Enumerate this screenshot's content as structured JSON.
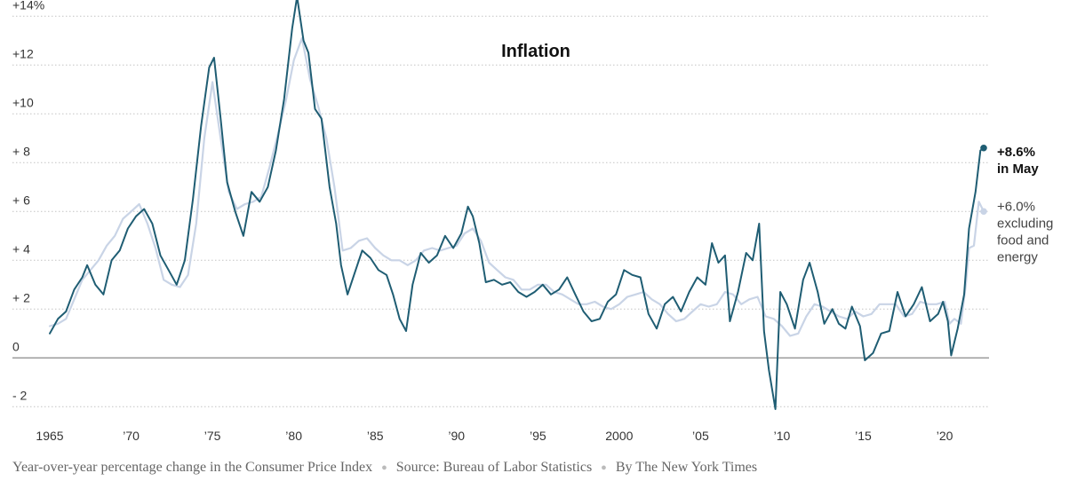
{
  "chart_data": {
    "type": "line",
    "title": "Inflation",
    "x_range": [
      1965,
      2022.4
    ],
    "y_range": [
      -2.5,
      14.3
    ],
    "y_ticks": [
      {
        "value": 14,
        "label": "+14%"
      },
      {
        "value": 12,
        "label": "+12"
      },
      {
        "value": 10,
        "label": "+10"
      },
      {
        "value": 8,
        "label": "+ 8"
      },
      {
        "value": 6,
        "label": "+ 6"
      },
      {
        "value": 4,
        "label": "+ 4"
      },
      {
        "value": 2,
        "label": "+ 2"
      },
      {
        "value": 0,
        "label": "0"
      },
      {
        "value": -2,
        "label": "- 2"
      }
    ],
    "x_ticks": [
      {
        "value": 1965,
        "label": "1965"
      },
      {
        "value": 1970,
        "label": "’70"
      },
      {
        "value": 1975,
        "label": "’75"
      },
      {
        "value": 1980,
        "label": "’80"
      },
      {
        "value": 1985,
        "label": "’85"
      },
      {
        "value": 1990,
        "label": "’90"
      },
      {
        "value": 1995,
        "label": "’95"
      },
      {
        "value": 2000,
        "label": "2000"
      },
      {
        "value": 2005,
        "label": "’05"
      },
      {
        "value": 2010,
        "label": "’10"
      },
      {
        "value": 2015,
        "label": "’15"
      },
      {
        "value": 2020,
        "label": "’20"
      }
    ],
    "series": [
      {
        "name": "Consumer Price Index",
        "color": "#1f5d73",
        "annotation": [
          "+8.6%",
          "in May"
        ],
        "points": [
          [
            1965.0,
            1.0
          ],
          [
            1965.5,
            1.6
          ],
          [
            1966.0,
            1.9
          ],
          [
            1966.5,
            2.8
          ],
          [
            1967.0,
            3.3
          ],
          [
            1967.3,
            3.8
          ],
          [
            1967.8,
            3.0
          ],
          [
            1968.3,
            2.6
          ],
          [
            1968.8,
            4.0
          ],
          [
            1969.3,
            4.4
          ],
          [
            1969.8,
            5.3
          ],
          [
            1970.3,
            5.8
          ],
          [
            1970.8,
            6.1
          ],
          [
            1971.3,
            5.5
          ],
          [
            1971.8,
            4.2
          ],
          [
            1972.3,
            3.6
          ],
          [
            1972.8,
            3.0
          ],
          [
            1973.3,
            4.0
          ],
          [
            1973.8,
            6.5
          ],
          [
            1974.3,
            9.5
          ],
          [
            1974.8,
            11.9
          ],
          [
            1975.1,
            12.3
          ],
          [
            1975.5,
            9.8
          ],
          [
            1975.9,
            7.2
          ],
          [
            1976.4,
            6.0
          ],
          [
            1976.9,
            5.0
          ],
          [
            1977.4,
            6.8
          ],
          [
            1977.9,
            6.4
          ],
          [
            1978.4,
            7.0
          ],
          [
            1978.9,
            8.5
          ],
          [
            1979.4,
            10.6
          ],
          [
            1979.9,
            13.5
          ],
          [
            1980.2,
            14.8
          ],
          [
            1980.6,
            13.0
          ],
          [
            1980.9,
            12.5
          ],
          [
            1981.3,
            10.2
          ],
          [
            1981.7,
            9.8
          ],
          [
            1982.2,
            7.0
          ],
          [
            1982.6,
            5.5
          ],
          [
            1982.9,
            3.8
          ],
          [
            1983.3,
            2.6
          ],
          [
            1983.7,
            3.4
          ],
          [
            1984.2,
            4.4
          ],
          [
            1984.7,
            4.1
          ],
          [
            1985.2,
            3.6
          ],
          [
            1985.7,
            3.4
          ],
          [
            1986.1,
            2.6
          ],
          [
            1986.5,
            1.6
          ],
          [
            1986.9,
            1.1
          ],
          [
            1987.3,
            3.0
          ],
          [
            1987.8,
            4.3
          ],
          [
            1988.3,
            3.9
          ],
          [
            1988.8,
            4.2
          ],
          [
            1989.3,
            5.0
          ],
          [
            1989.8,
            4.5
          ],
          [
            1990.3,
            5.1
          ],
          [
            1990.7,
            6.2
          ],
          [
            1991.0,
            5.8
          ],
          [
            1991.4,
            4.7
          ],
          [
            1991.8,
            3.1
          ],
          [
            1992.3,
            3.2
          ],
          [
            1992.8,
            3.0
          ],
          [
            1993.3,
            3.1
          ],
          [
            1993.8,
            2.7
          ],
          [
            1994.3,
            2.5
          ],
          [
            1994.8,
            2.7
          ],
          [
            1995.3,
            3.0
          ],
          [
            1995.8,
            2.6
          ],
          [
            1996.3,
            2.8
          ],
          [
            1996.8,
            3.3
          ],
          [
            1997.3,
            2.6
          ],
          [
            1997.8,
            1.9
          ],
          [
            1998.3,
            1.5
          ],
          [
            1998.8,
            1.6
          ],
          [
            1999.3,
            2.3
          ],
          [
            1999.8,
            2.6
          ],
          [
            2000.3,
            3.6
          ],
          [
            2000.8,
            3.4
          ],
          [
            2001.3,
            3.3
          ],
          [
            2001.8,
            1.8
          ],
          [
            2002.3,
            1.2
          ],
          [
            2002.8,
            2.2
          ],
          [
            2003.3,
            2.5
          ],
          [
            2003.8,
            1.9
          ],
          [
            2004.3,
            2.7
          ],
          [
            2004.8,
            3.3
          ],
          [
            2005.3,
            3.0
          ],
          [
            2005.7,
            4.7
          ],
          [
            2006.1,
            3.9
          ],
          [
            2006.5,
            4.2
          ],
          [
            2006.8,
            1.5
          ],
          [
            2007.3,
            2.7
          ],
          [
            2007.8,
            4.3
          ],
          [
            2008.2,
            4.0
          ],
          [
            2008.6,
            5.5
          ],
          [
            2008.9,
            1.1
          ],
          [
            2009.2,
            -0.5
          ],
          [
            2009.6,
            -2.1
          ],
          [
            2009.9,
            2.7
          ],
          [
            2010.3,
            2.2
          ],
          [
            2010.8,
            1.2
          ],
          [
            2011.3,
            3.2
          ],
          [
            2011.7,
            3.9
          ],
          [
            2012.2,
            2.7
          ],
          [
            2012.6,
            1.4
          ],
          [
            2013.1,
            2.0
          ],
          [
            2013.5,
            1.4
          ],
          [
            2013.9,
            1.2
          ],
          [
            2014.3,
            2.1
          ],
          [
            2014.8,
            1.3
          ],
          [
            2015.1,
            -0.1
          ],
          [
            2015.6,
            0.2
          ],
          [
            2016.1,
            1.0
          ],
          [
            2016.6,
            1.1
          ],
          [
            2017.1,
            2.7
          ],
          [
            2017.6,
            1.7
          ],
          [
            2018.1,
            2.2
          ],
          [
            2018.6,
            2.9
          ],
          [
            2019.1,
            1.5
          ],
          [
            2019.6,
            1.8
          ],
          [
            2019.9,
            2.3
          ],
          [
            2020.2,
            1.5
          ],
          [
            2020.4,
            0.1
          ],
          [
            2020.8,
            1.2
          ],
          [
            2021.2,
            2.6
          ],
          [
            2021.5,
            5.3
          ],
          [
            2021.9,
            6.8
          ],
          [
            2022.2,
            8.5
          ],
          [
            2022.4,
            8.6
          ]
        ]
      },
      {
        "name": "excluding food and energy",
        "color": "#c9d4e6",
        "annotation": [
          "+6.0%",
          "excluding",
          "food and",
          "energy"
        ],
        "points": [
          [
            1965.0,
            1.3
          ],
          [
            1965.5,
            1.4
          ],
          [
            1966.0,
            1.6
          ],
          [
            1966.5,
            2.4
          ],
          [
            1967.0,
            3.2
          ],
          [
            1967.5,
            3.6
          ],
          [
            1968.0,
            4.0
          ],
          [
            1968.5,
            4.6
          ],
          [
            1969.0,
            5.0
          ],
          [
            1969.5,
            5.7
          ],
          [
            1970.0,
            6.0
          ],
          [
            1970.5,
            6.3
          ],
          [
            1971.0,
            5.5
          ],
          [
            1971.5,
            4.5
          ],
          [
            1972.0,
            3.2
          ],
          [
            1972.5,
            3.0
          ],
          [
            1973.0,
            2.9
          ],
          [
            1973.5,
            3.4
          ],
          [
            1974.0,
            5.5
          ],
          [
            1974.5,
            9.0
          ],
          [
            1975.0,
            11.3
          ],
          [
            1975.5,
            9.0
          ],
          [
            1976.0,
            6.8
          ],
          [
            1976.5,
            6.1
          ],
          [
            1977.0,
            6.3
          ],
          [
            1977.5,
            6.4
          ],
          [
            1978.0,
            6.6
          ],
          [
            1978.5,
            7.8
          ],
          [
            1979.0,
            9.1
          ],
          [
            1979.5,
            10.5
          ],
          [
            1980.0,
            12.2
          ],
          [
            1980.5,
            13.1
          ],
          [
            1981.0,
            11.4
          ],
          [
            1981.5,
            10.3
          ],
          [
            1982.0,
            9.0
          ],
          [
            1982.5,
            7.0
          ],
          [
            1983.0,
            4.4
          ],
          [
            1983.5,
            4.5
          ],
          [
            1984.0,
            4.8
          ],
          [
            1984.5,
            4.9
          ],
          [
            1985.0,
            4.5
          ],
          [
            1985.5,
            4.2
          ],
          [
            1986.0,
            4.0
          ],
          [
            1986.5,
            4.0
          ],
          [
            1987.0,
            3.8
          ],
          [
            1987.5,
            4.0
          ],
          [
            1988.0,
            4.4
          ],
          [
            1988.5,
            4.5
          ],
          [
            1989.0,
            4.4
          ],
          [
            1989.5,
            4.5
          ],
          [
            1990.0,
            4.6
          ],
          [
            1990.5,
            5.1
          ],
          [
            1991.0,
            5.3
          ],
          [
            1991.5,
            4.8
          ],
          [
            1992.0,
            3.9
          ],
          [
            1992.5,
            3.6
          ],
          [
            1993.0,
            3.3
          ],
          [
            1993.5,
            3.2
          ],
          [
            1994.0,
            2.8
          ],
          [
            1994.5,
            2.8
          ],
          [
            1995.0,
            3.0
          ],
          [
            1995.5,
            3.0
          ],
          [
            1996.0,
            2.7
          ],
          [
            1996.5,
            2.6
          ],
          [
            1997.0,
            2.4
          ],
          [
            1997.5,
            2.2
          ],
          [
            1998.0,
            2.2
          ],
          [
            1998.5,
            2.3
          ],
          [
            1999.0,
            2.1
          ],
          [
            1999.5,
            2.0
          ],
          [
            2000.0,
            2.2
          ],
          [
            2000.5,
            2.5
          ],
          [
            2001.0,
            2.6
          ],
          [
            2001.5,
            2.7
          ],
          [
            2002.0,
            2.4
          ],
          [
            2002.5,
            2.2
          ],
          [
            2003.0,
            1.8
          ],
          [
            2003.5,
            1.5
          ],
          [
            2004.0,
            1.6
          ],
          [
            2004.5,
            1.9
          ],
          [
            2005.0,
            2.2
          ],
          [
            2005.5,
            2.1
          ],
          [
            2006.0,
            2.2
          ],
          [
            2006.5,
            2.7
          ],
          [
            2007.0,
            2.6
          ],
          [
            2007.5,
            2.2
          ],
          [
            2008.0,
            2.4
          ],
          [
            2008.5,
            2.5
          ],
          [
            2009.0,
            1.7
          ],
          [
            2009.5,
            1.6
          ],
          [
            2010.0,
            1.3
          ],
          [
            2010.5,
            0.9
          ],
          [
            2011.0,
            1.0
          ],
          [
            2011.5,
            1.7
          ],
          [
            2012.0,
            2.2
          ],
          [
            2012.5,
            2.1
          ],
          [
            2013.0,
            1.9
          ],
          [
            2013.5,
            1.7
          ],
          [
            2014.0,
            1.6
          ],
          [
            2014.5,
            1.9
          ],
          [
            2015.0,
            1.7
          ],
          [
            2015.5,
            1.8
          ],
          [
            2016.0,
            2.2
          ],
          [
            2016.5,
            2.2
          ],
          [
            2017.0,
            2.2
          ],
          [
            2017.5,
            1.7
          ],
          [
            2018.0,
            1.8
          ],
          [
            2018.5,
            2.3
          ],
          [
            2019.0,
            2.2
          ],
          [
            2019.5,
            2.2
          ],
          [
            2020.0,
            2.3
          ],
          [
            2020.3,
            1.4
          ],
          [
            2020.6,
            1.6
          ],
          [
            2021.0,
            1.4
          ],
          [
            2021.3,
            3.0
          ],
          [
            2021.5,
            4.5
          ],
          [
            2021.8,
            4.6
          ],
          [
            2022.1,
            6.4
          ],
          [
            2022.4,
            6.0
          ]
        ]
      }
    ]
  },
  "footer": {
    "description": "Year-over-year percentage change in the Consumer Price Index",
    "source": "Source: Bureau of Labor Statistics",
    "credit": "By The New York Times"
  }
}
